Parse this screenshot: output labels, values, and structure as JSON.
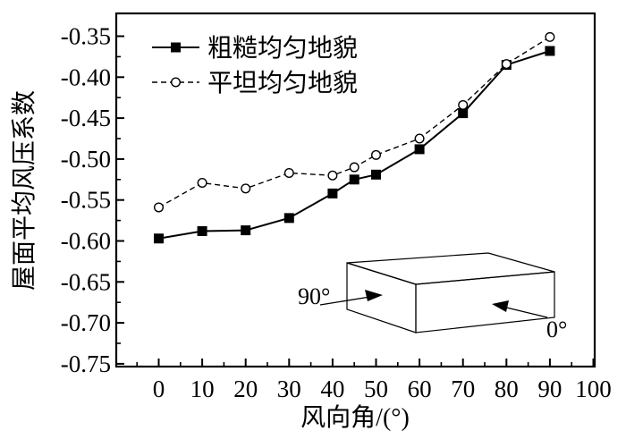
{
  "chart_data": {
    "type": "line",
    "title": "",
    "xlabel": "风向角/(°)",
    "ylabel": "屋面平均风压系数",
    "xlim": [
      -10,
      100
    ],
    "ylim": [
      -0.75,
      -0.33
    ],
    "xticks": [
      0,
      10,
      20,
      30,
      40,
      50,
      60,
      70,
      80,
      90,
      100
    ],
    "yticks": [
      -0.75,
      -0.7,
      -0.65,
      -0.6,
      -0.55,
      -0.5,
      -0.45,
      -0.4,
      -0.35
    ],
    "xtick_labels": [
      "0",
      "10",
      "20",
      "30",
      "40",
      "50",
      "60",
      "70",
      "80",
      "90",
      "100"
    ],
    "ytick_labels": [
      "-0.75",
      "-0.70",
      "-0.65",
      "-0.60",
      "-0.55",
      "-0.50",
      "-0.45",
      "-0.40",
      "-0.35"
    ],
    "grid": false,
    "legend_position": "top-left",
    "series": [
      {
        "name": "粗糙均匀地貌",
        "marker": "filled-square",
        "line": "solid",
        "x": [
          0,
          10,
          20,
          30,
          40,
          45,
          50,
          60,
          70,
          80,
          90
        ],
        "y": [
          -0.597,
          -0.588,
          -0.587,
          -0.572,
          -0.542,
          -0.525,
          -0.519,
          -0.488,
          -0.444,
          -0.385,
          -0.368
        ]
      },
      {
        "name": "平坦均匀地貌",
        "marker": "open-circle",
        "line": "dashed",
        "x": [
          0,
          10,
          20,
          30,
          40,
          45,
          50,
          60,
          70,
          80,
          90
        ],
        "y": [
          -0.559,
          -0.529,
          -0.536,
          -0.517,
          -0.52,
          -0.51,
          -0.495,
          -0.475,
          -0.434,
          -0.384,
          -0.351
        ]
      }
    ],
    "annotations": {
      "angle_90": "90°",
      "angle_0": "0°"
    }
  }
}
